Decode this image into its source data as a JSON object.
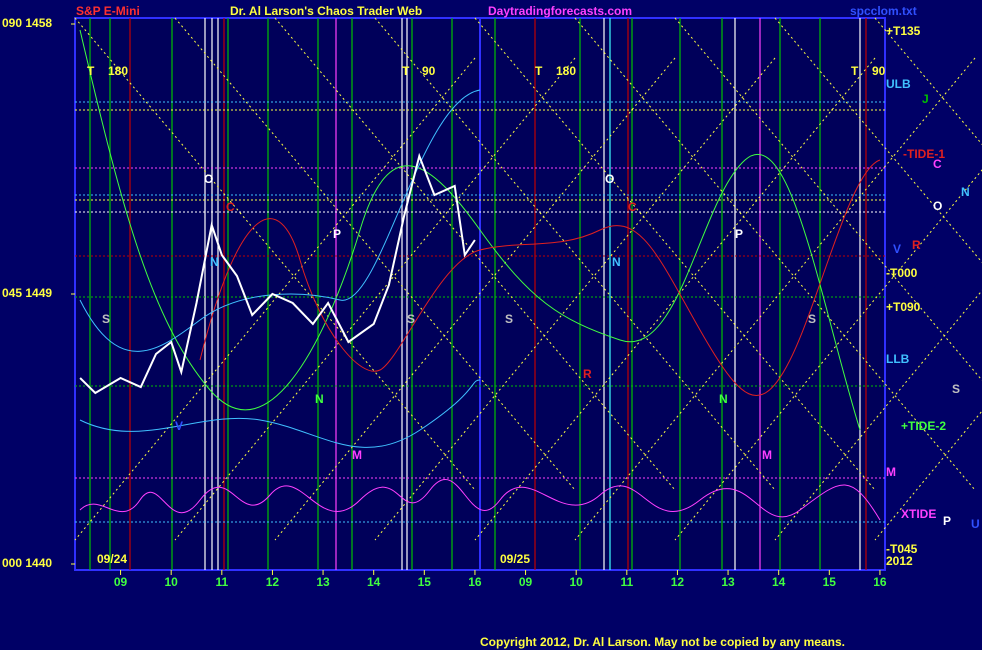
{
  "chart_data": {
    "type": "line",
    "title": "S&P E-Mini",
    "subtitle": "Dr. Al Larson's Chaos Trader Web",
    "site": "Daytradingforecasts.com",
    "file": "spcclom.txt",
    "copyright": "Copyright 2012, Dr. Al Larson. May not be copied by any means.",
    "date_labels": [
      "09/24",
      "09/25"
    ],
    "right_labels": [
      "+T135",
      "ULB",
      "J",
      "-TIDE-1",
      "C",
      "N",
      "O",
      "V",
      "R",
      "-T000",
      "+T090",
      "LLB",
      "S",
      "+TIDE-2",
      "M",
      "XTIDE",
      "P",
      "U",
      "-T045",
      "2012"
    ],
    "annotations": [
      "T",
      "180",
      "T",
      "90",
      "T",
      "180",
      "T",
      "90",
      "O",
      "C",
      "N",
      "S",
      "P",
      "S",
      "S",
      "O",
      "C",
      "N",
      "P",
      "S",
      "R",
      "N",
      "N",
      "V",
      "M",
      "M"
    ],
    "x": [
      8.2,
      8.5,
      9.0,
      9.4,
      9.7,
      10.0,
      10.2,
      10.5,
      10.8,
      11.0,
      11.3,
      11.6,
      12.0,
      12.4,
      12.8,
      13.1,
      13.5,
      14.0,
      14.3,
      14.6,
      14.9,
      15.2,
      15.6,
      15.8,
      16.0
    ],
    "values": [
      1446.2,
      1445.7,
      1446.2,
      1445.9,
      1447.0,
      1447.4,
      1446.4,
      1448.7,
      1451.3,
      1450.3,
      1449.6,
      1448.3,
      1449.0,
      1448.7,
      1448.0,
      1448.7,
      1447.4,
      1448.0,
      1449.3,
      1451.6,
      1453.6,
      1452.3,
      1452.6,
      1450.3,
      1450.8
    ],
    "color": "#ffffff",
    "xlim": [
      8.1,
      24.1
    ],
    "xticks": [
      {
        "value": 9,
        "label": "09"
      },
      10,
      11,
      12,
      13,
      14,
      15,
      16,
      {
        "value": 17,
        "label": "09"
      },
      {
        "value": 18,
        "label": "10"
      },
      {
        "value": 19,
        "label": "11"
      },
      {
        "value": 20,
        "label": "12"
      },
      {
        "value": 21,
        "label": "13"
      },
      {
        "value": 22,
        "label": "14"
      },
      {
        "value": 23,
        "label": "15"
      },
      {
        "value": 24,
        "label": "16"
      }
    ],
    "ylim": [
      1439.8,
      1458.2
    ],
    "yticks": [
      {
        "value": 1440,
        "label": "000 1440"
      },
      {
        "value": 1449,
        "label": "045 1449"
      },
      {
        "value": 1458,
        "label": "090 1458"
      }
    ]
  }
}
